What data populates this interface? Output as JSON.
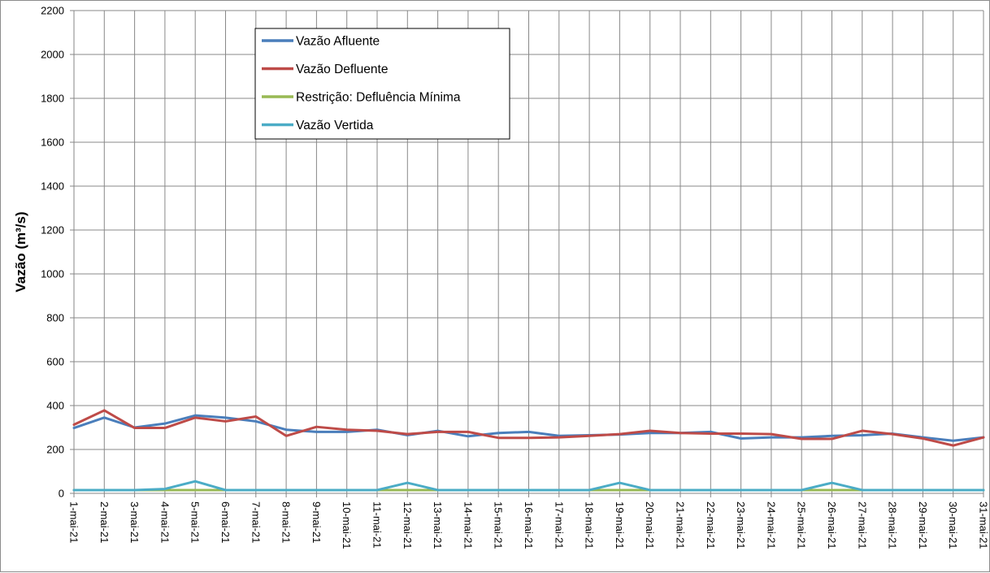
{
  "chart_data": {
    "type": "line",
    "title": "",
    "xlabel": "",
    "ylabel": "Vazão (m³/s)",
    "ylim": [
      0,
      2200
    ],
    "yticks": [
      0,
      200,
      400,
      600,
      800,
      1000,
      1200,
      1400,
      1600,
      1800,
      2000,
      2200
    ],
    "grid": true,
    "legend_position": "top-center",
    "categories": [
      "1-mai-21",
      "2-mai-21",
      "3-mai-21",
      "4-mai-21",
      "5-mai-21",
      "6-mai-21",
      "7-mai-21",
      "8-mai-21",
      "9-mai-21",
      "10-mai-21",
      "11-mai-21",
      "12-mai-21",
      "13-mai-21",
      "14-mai-21",
      "15-mai-21",
      "16-mai-21",
      "17-mai-21",
      "18-mai-21",
      "19-mai-21",
      "20-mai-21",
      "21-mai-21",
      "22-mai-21",
      "23-mai-21",
      "24-mai-21",
      "25-mai-21",
      "26-mai-21",
      "27-mai-21",
      "28-mai-21",
      "29-mai-21",
      "30-mai-21",
      "31-mai-21"
    ],
    "series": [
      {
        "name": "Vazão Afluente",
        "color": "#4a7ebb",
        "values": [
          298,
          345,
          300,
          318,
          355,
          345,
          328,
          290,
          280,
          280,
          290,
          265,
          285,
          260,
          275,
          280,
          262,
          265,
          268,
          275,
          275,
          280,
          250,
          255,
          255,
          262,
          265,
          272,
          255,
          240,
          255
        ]
      },
      {
        "name": "Vazão Defluente",
        "color": "#be4b48",
        "values": [
          313,
          378,
          298,
          298,
          345,
          328,
          350,
          262,
          303,
          290,
          285,
          270,
          280,
          280,
          253,
          253,
          255,
          262,
          270,
          285,
          275,
          272,
          272,
          270,
          248,
          248,
          285,
          270,
          250,
          218,
          255
        ]
      },
      {
        "name": "Restrição: Defluência Mínima",
        "color": "#98b954",
        "values": [
          15,
          15,
          15,
          15,
          15,
          15,
          15,
          15,
          15,
          15,
          15,
          15,
          15,
          15,
          15,
          15,
          15,
          15,
          15,
          15,
          15,
          15,
          15,
          15,
          15,
          15,
          15,
          15,
          15,
          15,
          15
        ]
      },
      {
        "name": "Vazão Vertida",
        "color": "#4bacc6",
        "values": [
          15,
          15,
          15,
          20,
          55,
          15,
          15,
          15,
          15,
          15,
          15,
          48,
          15,
          15,
          15,
          15,
          15,
          15,
          48,
          15,
          15,
          15,
          15,
          15,
          15,
          48,
          15,
          15,
          15,
          15,
          15
        ]
      }
    ]
  }
}
